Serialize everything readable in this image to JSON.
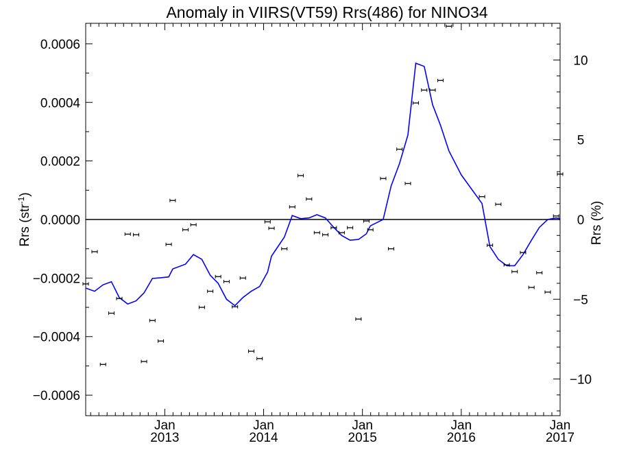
{
  "chart_data": {
    "type": "scatter",
    "title": "Anomaly in VIIRS(VT59) Rrs(486) for NINO34",
    "ylabel_left_main": "Rrs (str",
    "ylabel_left_sup": "-1",
    "ylabel_left_close": ")",
    "ylabel_right": "Rrs (%)",
    "xlim": [
      2012.2,
      2017.0
    ],
    "ylim_left": [
      -0.00067,
      0.00067
    ],
    "ylim_right": [
      -12.3,
      12.3
    ],
    "x_ticks": [
      {
        "x": 2013.0,
        "month": "Jan",
        "year": "2013"
      },
      {
        "x": 2014.0,
        "month": "Jan",
        "year": "2014"
      },
      {
        "x": 2015.0,
        "month": "Jan",
        "year": "2015"
      },
      {
        "x": 2016.0,
        "month": "Jan",
        "year": "2016"
      },
      {
        "x": 2017.0,
        "month": "Jan",
        "year": "2017"
      }
    ],
    "y_ticks_left": [
      {
        "value": 0.0006,
        "label": "0.0006"
      },
      {
        "value": 0.0004,
        "label": "0.0004"
      },
      {
        "value": 0.0002,
        "label": "0.0002"
      },
      {
        "value": 0.0,
        "label": "0.0000"
      },
      {
        "value": -0.0002,
        "label": "−0.0002"
      },
      {
        "value": -0.0004,
        "label": "−0.0004"
      },
      {
        "value": -0.0006,
        "label": "−0.0006"
      }
    ],
    "y_ticks_right": [
      {
        "value": 10,
        "label": "10"
      },
      {
        "value": 5,
        "label": "5"
      },
      {
        "value": 0,
        "label": "0"
      },
      {
        "value": -5,
        "label": "−5"
      },
      {
        "value": -10,
        "label": "−10"
      }
    ],
    "zero_line": true,
    "series": [
      {
        "type": "scatter_errorbar",
        "axis": "left",
        "color": "#000000",
        "points": [
          {
            "x": 2012.2,
            "y": -0.00022
          },
          {
            "x": 2012.29,
            "y": -0.00011
          },
          {
            "x": 2012.375,
            "y": -0.000495
          },
          {
            "x": 2012.46,
            "y": -0.00032
          },
          {
            "x": 2012.54,
            "y": -0.00027
          },
          {
            "x": 2012.625,
            "y": -5e-05
          },
          {
            "x": 2012.71,
            "y": -5.2e-05
          },
          {
            "x": 2012.79,
            "y": -0.000485
          },
          {
            "x": 2012.875,
            "y": -0.000345
          },
          {
            "x": 2012.96,
            "y": -0.000415
          },
          {
            "x": 2013.04,
            "y": -8.5e-05
          },
          {
            "x": 2013.08,
            "y": 6.5e-05
          },
          {
            "x": 2013.21,
            "y": -3.5e-05
          },
          {
            "x": 2013.29,
            "y": -1.8e-05
          },
          {
            "x": 2013.375,
            "y": -0.0003
          },
          {
            "x": 2013.46,
            "y": -0.000245
          },
          {
            "x": 2013.54,
            "y": -0.000195
          },
          {
            "x": 2013.625,
            "y": -0.000212
          },
          {
            "x": 2013.71,
            "y": -0.000298
          },
          {
            "x": 2013.79,
            "y": -0.0002
          },
          {
            "x": 2013.875,
            "y": -0.00045
          },
          {
            "x": 2013.96,
            "y": -0.000475
          },
          {
            "x": 2014.04,
            "y": -8e-06
          },
          {
            "x": 2014.08,
            "y": -3e-05
          },
          {
            "x": 2014.21,
            "y": -0.0001
          },
          {
            "x": 2014.29,
            "y": 4.3e-05
          },
          {
            "x": 2014.375,
            "y": 0.00015
          },
          {
            "x": 2014.46,
            "y": 7e-05
          },
          {
            "x": 2014.54,
            "y": -4.5e-05
          },
          {
            "x": 2014.625,
            "y": -5.2e-05
          },
          {
            "x": 2014.71,
            "y": -2.8e-05
          },
          {
            "x": 2014.79,
            "y": -4.5e-05
          },
          {
            "x": 2014.875,
            "y": -2.8e-05
          },
          {
            "x": 2014.96,
            "y": -0.00034
          },
          {
            "x": 2015.04,
            "y": -5e-06
          },
          {
            "x": 2015.08,
            "y": -3.5e-05
          },
          {
            "x": 2015.21,
            "y": 0.00014
          },
          {
            "x": 2015.29,
            "y": -0.0001
          },
          {
            "x": 2015.375,
            "y": 0.00024
          },
          {
            "x": 2015.46,
            "y": 0.000123
          },
          {
            "x": 2015.54,
            "y": 0.000398
          },
          {
            "x": 2015.625,
            "y": 0.000442
          },
          {
            "x": 2015.71,
            "y": 0.000442
          },
          {
            "x": 2015.79,
            "y": 0.000475
          },
          {
            "x": 2015.875,
            "y": 0.00066
          },
          {
            "x": 2016.21,
            "y": 7.8e-05
          },
          {
            "x": 2016.29,
            "y": -8.8e-05
          },
          {
            "x": 2016.375,
            "y": 5.2e-05
          },
          {
            "x": 2016.46,
            "y": -0.000155
          },
          {
            "x": 2016.54,
            "y": -0.000178
          },
          {
            "x": 2016.625,
            "y": -0.000113
          },
          {
            "x": 2016.71,
            "y": -0.000232
          },
          {
            "x": 2016.79,
            "y": -0.000182
          },
          {
            "x": 2016.875,
            "y": -0.000248
          },
          {
            "x": 2016.96,
            "y": 1.2e-05
          },
          {
            "x": 2017.0,
            "y": 0.000155
          }
        ]
      },
      {
        "type": "line",
        "axis": "right",
        "color": "#0000ff",
        "x": [
          2012.2,
          2012.29,
          2012.375,
          2012.46,
          2012.54,
          2012.625,
          2012.71,
          2012.79,
          2012.875,
          2012.96,
          2013.04,
          2013.08,
          2013.21,
          2013.29,
          2013.375,
          2013.46,
          2013.54,
          2013.625,
          2013.71,
          2013.79,
          2013.875,
          2013.96,
          2014.04,
          2014.08,
          2014.21,
          2014.29,
          2014.375,
          2014.46,
          2014.54,
          2014.625,
          2014.71,
          2014.79,
          2014.875,
          2014.96,
          2015.04,
          2015.08,
          2015.21,
          2015.29,
          2015.375,
          2015.46,
          2015.54,
          2015.625,
          2015.71,
          2015.79,
          2015.875,
          2016.0,
          2016.21,
          2016.29,
          2016.375,
          2016.46,
          2016.54,
          2016.625,
          2016.71,
          2016.79,
          2016.875,
          2016.96,
          2017.0
        ],
        "y": [
          -4.3,
          -4.5,
          -4.1,
          -3.9,
          -4.9,
          -5.3,
          -5.1,
          -4.6,
          -3.7,
          -3.65,
          -3.6,
          -3.1,
          -2.8,
          -2.2,
          -2.5,
          -3.5,
          -4.0,
          -5.0,
          -5.4,
          -4.9,
          -4.5,
          -4.2,
          -3.3,
          -2.3,
          -1.1,
          0.25,
          0.05,
          0.1,
          0.3,
          0.1,
          -0.5,
          -1.0,
          -1.3,
          -1.25,
          -0.9,
          -0.4,
          0.0,
          2.1,
          3.5,
          5.3,
          9.8,
          9.6,
          7.2,
          5.9,
          4.3,
          2.8,
          1.0,
          -1.7,
          -2.5,
          -2.9,
          -2.9,
          -2.2,
          -1.3,
          -0.5,
          0.0,
          0.1,
          0.05
        ]
      }
    ]
  }
}
